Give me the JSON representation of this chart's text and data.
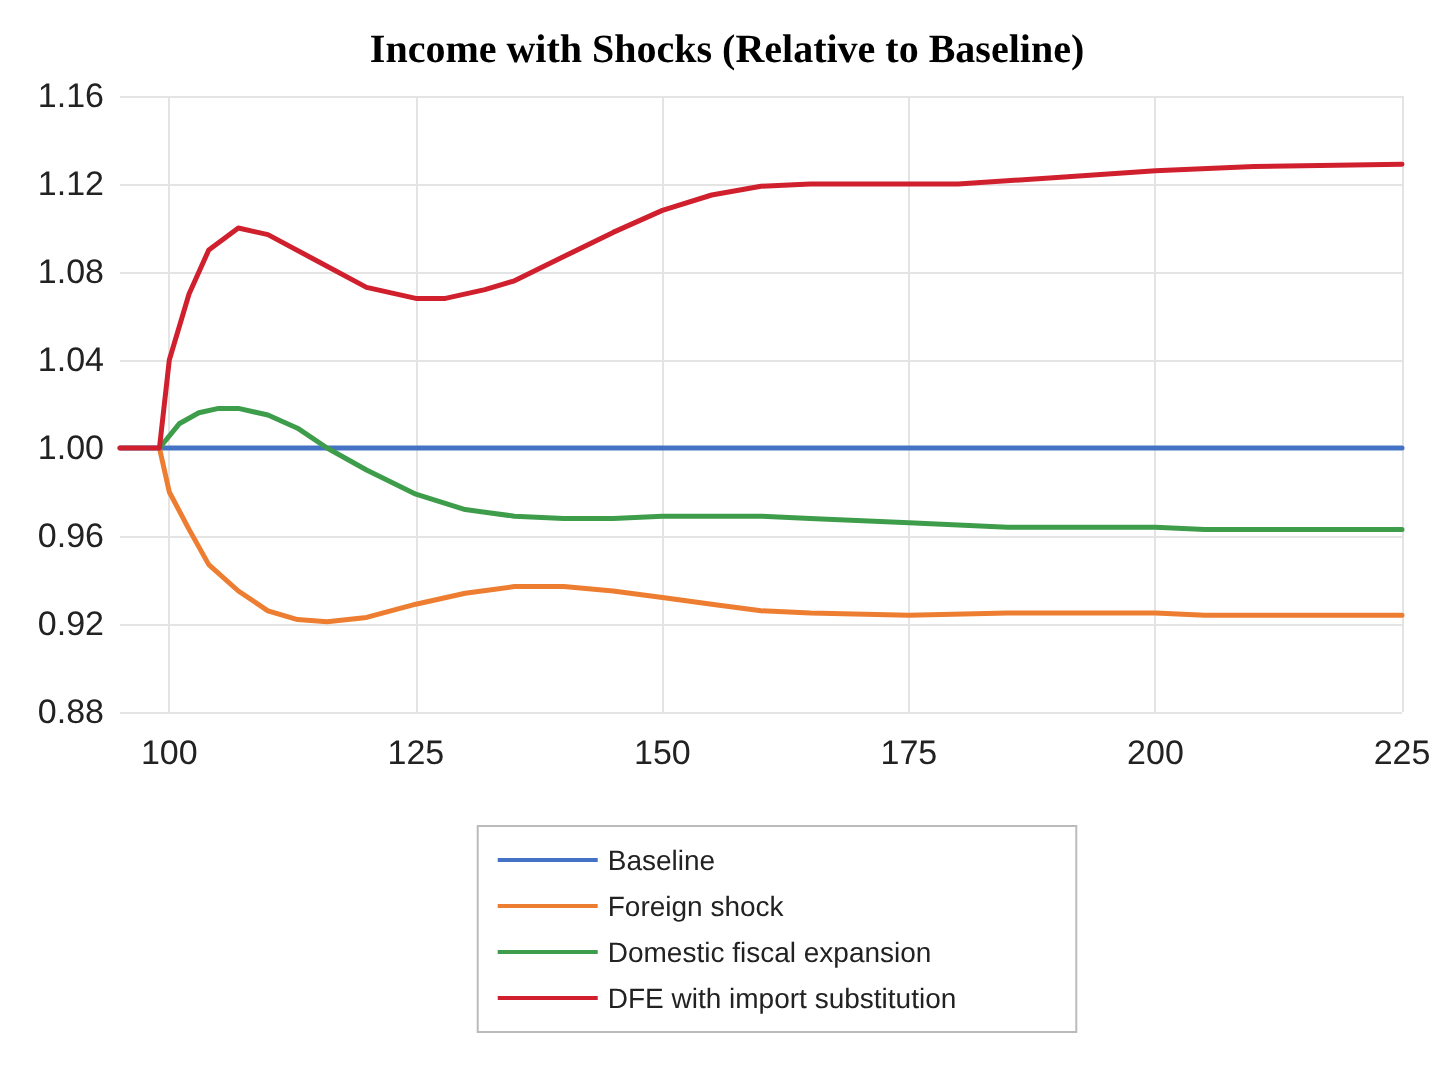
{
  "chart_data": {
    "type": "line",
    "title": "Income with Shocks (Relative to Baseline)",
    "xlim": [
      95,
      225
    ],
    "xticks": [
      100,
      125,
      150,
      175,
      200,
      225
    ],
    "ylim": [
      0.88,
      1.16
    ],
    "yticks": [
      {
        "value": 0.88,
        "label": "0.88"
      },
      {
        "value": 0.92,
        "label": "0.92"
      },
      {
        "value": 0.96,
        "label": "0.96"
      },
      {
        "value": 1.0,
        "label": "1.00"
      },
      {
        "value": 1.04,
        "label": "1.04"
      },
      {
        "value": 1.08,
        "label": "1.08"
      },
      {
        "value": 1.12,
        "label": "1.12"
      },
      {
        "value": 1.16,
        "label": "1.16"
      }
    ],
    "grid": true,
    "legend": "bottom",
    "marker": "none",
    "line_style": "solid",
    "series": [
      {
        "name": "Baseline",
        "color": "#4472c4",
        "x": [
          95,
          225
        ],
        "values": [
          1.0,
          1.0
        ]
      },
      {
        "name": "Foreign shock",
        "color": "#ed7d31",
        "x": [
          99,
          100,
          102,
          104,
          107,
          110,
          113,
          116,
          120,
          125,
          130,
          135,
          140,
          145,
          150,
          155,
          160,
          165,
          175,
          185,
          200,
          205,
          225
        ],
        "values": [
          1.0,
          0.98,
          0.963,
          0.947,
          0.935,
          0.926,
          0.922,
          0.921,
          0.923,
          0.929,
          0.934,
          0.937,
          0.937,
          0.935,
          0.932,
          0.929,
          0.926,
          0.925,
          0.924,
          0.925,
          0.925,
          0.924,
          0.924
        ]
      },
      {
        "name": "Domestic fiscal expansion",
        "color": "#3e9d4b",
        "x": [
          99,
          101,
          103,
          105,
          107,
          110,
          113,
          116,
          120,
          125,
          130,
          135,
          140,
          145,
          150,
          160,
          165,
          175,
          185,
          200,
          205,
          225
        ],
        "values": [
          1.0,
          1.011,
          1.016,
          1.018,
          1.018,
          1.015,
          1.009,
          1.0,
          0.99,
          0.979,
          0.972,
          0.969,
          0.968,
          0.968,
          0.969,
          0.969,
          0.968,
          0.966,
          0.964,
          0.964,
          0.963,
          0.963
        ]
      },
      {
        "name": "DFE with import substitution",
        "color": "#d0202e",
        "x": [
          95,
          99,
          100,
          102,
          104,
          107,
          110,
          115,
          120,
          125,
          128,
          132,
          135,
          140,
          145,
          150,
          155,
          160,
          165,
          180,
          190,
          200,
          210,
          225
        ],
        "values": [
          1.0,
          1.0,
          1.04,
          1.07,
          1.09,
          1.1,
          1.097,
          1.085,
          1.073,
          1.068,
          1.068,
          1.072,
          1.076,
          1.087,
          1.098,
          1.108,
          1.115,
          1.119,
          1.12,
          1.12,
          1.123,
          1.126,
          1.128,
          1.129
        ]
      }
    ]
  }
}
